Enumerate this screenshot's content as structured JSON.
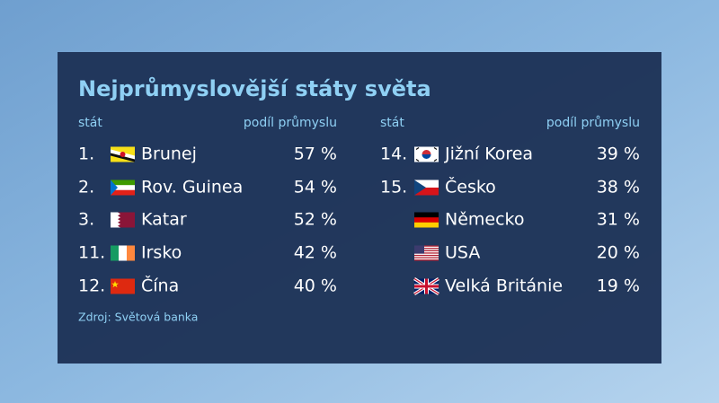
{
  "title": "Nejprůmyslovější státy světa",
  "source": "Zdroj: Světová banka",
  "tables": [
    {
      "headers": [
        "stát",
        "podíl průmyslu"
      ],
      "rows": [
        {
          "rank": "1.",
          "country": "Brunej",
          "share": "57 %"
        },
        {
          "rank": "2.",
          "country": "Rov. Guinea",
          "share": "54 %"
        },
        {
          "rank": "3.",
          "country": "Katar",
          "share": "52 %"
        },
        {
          "rank": "11.",
          "country": "Irsko",
          "share": "42 %"
        },
        {
          "rank": "12.",
          "country": "Čína",
          "share": "40 %"
        }
      ]
    },
    {
      "headers": [
        "stát",
        "podíl průmyslu"
      ],
      "rows": [
        {
          "rank": "14.",
          "country": "Jižní Korea",
          "share": "39 %"
        },
        {
          "rank": "15.",
          "country": "Česko",
          "share": "38 %"
        },
        {
          "rank": null,
          "country": "Německo",
          "share": "31 %"
        },
        {
          "rank": null,
          "country": "USA",
          "share": "20 %"
        },
        {
          "rank": null,
          "country": "Velká Británie",
          "share": "19 %"
        }
      ]
    }
  ]
}
